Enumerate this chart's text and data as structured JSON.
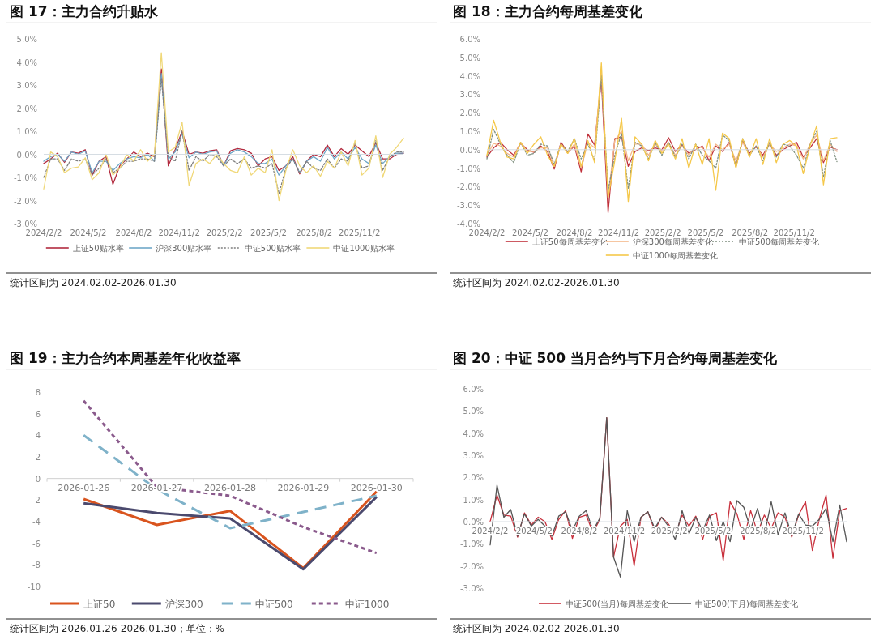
{
  "chart_data": [
    {
      "type": "line",
      "title": "图 17：主力合约升贴水",
      "annotations": [
        "统计区间为 2024.02.02-2026.01.30"
      ],
      "legend": "bottom",
      "x": [
        "2024-02-02",
        "2024-02-16",
        "2024-03-01",
        "2024-03-15",
        "2024-03-29",
        "2024-04-12",
        "2024-04-26",
        "2024-05-10",
        "2024-05-24",
        "2024-06-07",
        "2024-06-21",
        "2024-07-05",
        "2024-07-19",
        "2024-08-02",
        "2024-08-16",
        "2024-08-30",
        "2024-09-13",
        "2024-09-27",
        "2024-10-11",
        "2024-10-25",
        "2024-11-08",
        "2024-11-22",
        "2024-12-06",
        "2024-12-20",
        "2025-01-03",
        "2025-01-17",
        "2025-01-31",
        "2025-02-14",
        "2025-02-28",
        "2025-03-14",
        "2025-03-28",
        "2025-04-11",
        "2025-04-25",
        "2025-05-09",
        "2025-05-23",
        "2025-06-06",
        "2025-06-20",
        "2025-07-04",
        "2025-07-18",
        "2025-08-01",
        "2025-08-15",
        "2025-08-29",
        "2025-09-12",
        "2025-09-26",
        "2025-10-10",
        "2025-10-24",
        "2025-11-07",
        "2025-11-21",
        "2025-12-05",
        "2025-12-19",
        "2026-01-02",
        "2026-01-16",
        "2026-01-30"
      ],
      "xlim": [
        "2024-02-02",
        "2026-01-30"
      ],
      "xticks": [
        {
          "value": "2024-02-02",
          "label": "2024/2/2"
        },
        {
          "value": "2024-05-02",
          "label": "2024/5/2"
        },
        {
          "value": "2024-08-02",
          "label": "2024/8/2"
        },
        {
          "value": "2024-11-02",
          "label": "2024/11/2"
        },
        {
          "value": "2025-02-02",
          "label": "2025/2/2"
        },
        {
          "value": "2025-05-02",
          "label": "2025/5/2"
        },
        {
          "value": "2025-08-02",
          "label": "2025/8/2"
        },
        {
          "value": "2025-11-02",
          "label": "2025/11/2"
        }
      ],
      "ylim": [
        -3,
        5
      ],
      "yticks": [
        {
          "value": -3,
          "label": "-3.0%"
        },
        {
          "value": -2,
          "label": "-2.0%"
        },
        {
          "value": -1,
          "label": "-1.0%"
        },
        {
          "value": 0,
          "label": "0.0%"
        },
        {
          "value": 1,
          "label": "1.0%"
        },
        {
          "value": 2,
          "label": "2.0%"
        },
        {
          "value": 3,
          "label": "3.0%"
        },
        {
          "value": 4,
          "label": "4.0%"
        },
        {
          "value": 5,
          "label": "5.0%"
        }
      ],
      "series": [
        {
          "name": "上证50贴水率",
          "color": "#b22a3e",
          "values": [
            -0.4,
            -0.2,
            0.05,
            -0.35,
            0.1,
            0.05,
            0.2,
            -0.9,
            -0.3,
            -0.1,
            -1.3,
            -0.5,
            -0.2,
            0.1,
            -0.1,
            0.05,
            -0.1,
            3.7,
            -0.5,
            0.2,
            1.0,
            0.0,
            0.1,
            0.05,
            0.15,
            0.2,
            -0.5,
            0.15,
            0.25,
            0.2,
            0.05,
            -0.5,
            -0.2,
            -0.1,
            -0.7,
            -0.5,
            -0.1,
            -0.85,
            -0.3,
            0.0,
            -0.1,
            0.4,
            -0.1,
            0.25,
            0.0,
            0.4,
            0.15,
            -0.1,
            0.5,
            -0.2,
            -0.2,
            0.0,
            0.05
          ]
        },
        {
          "name": "沪深300贴水率",
          "color": "#6fa8c8",
          "values": [
            -0.3,
            -0.1,
            0.0,
            -0.3,
            0.1,
            0.0,
            0.15,
            -0.8,
            -0.3,
            -0.3,
            -0.7,
            -0.4,
            -0.2,
            -0.1,
            -0.15,
            0.0,
            -0.3,
            3.5,
            -0.2,
            0.1,
            0.9,
            -0.15,
            0.1,
            0.0,
            0.1,
            0.15,
            -0.5,
            0.05,
            0.2,
            0.1,
            -0.1,
            -0.4,
            -0.4,
            -0.2,
            -0.9,
            -0.5,
            -0.2,
            -0.8,
            -0.3,
            -0.1,
            -0.3,
            0.3,
            -0.2,
            0.1,
            -0.2,
            0.3,
            -0.2,
            -0.4,
            0.4,
            -0.4,
            -0.1,
            0.05,
            0.05
          ]
        },
        {
          "name": "中证500贴水率",
          "color": "#7f7f7f",
          "line_style": "dotted",
          "values": [
            -1.0,
            -0.2,
            -0.2,
            -0.7,
            -0.2,
            -0.3,
            -0.2,
            -0.9,
            -0.6,
            -0.2,
            -0.8,
            -0.6,
            -0.3,
            -0.3,
            -0.2,
            -0.2,
            -0.3,
            3.3,
            -0.1,
            -0.3,
            1.0,
            -0.7,
            -0.1,
            -0.3,
            0.0,
            -0.1,
            -0.5,
            -0.2,
            -0.4,
            -0.2,
            -0.6,
            -0.5,
            -0.6,
            -0.4,
            -1.7,
            -0.6,
            -0.2,
            -0.8,
            -0.3,
            -0.6,
            -0.7,
            -0.2,
            -0.6,
            -0.2,
            -0.3,
            0.5,
            -0.6,
            -0.5,
            0.6,
            -0.7,
            -0.1,
            0.1,
            0.1
          ]
        },
        {
          "name": "中证1000贴水率",
          "color": "#f0d878",
          "values": [
            -1.5,
            0.1,
            -0.1,
            -0.8,
            -0.6,
            -0.55,
            -0.15,
            -1.1,
            -0.8,
            0.0,
            -0.9,
            -0.6,
            0.0,
            -0.3,
            0.2,
            -0.3,
            0.0,
            4.4,
            0.1,
            0.3,
            1.4,
            -1.35,
            -0.4,
            -0.2,
            -0.4,
            0.0,
            -0.4,
            -0.7,
            -0.8,
            -0.1,
            -0.9,
            -0.6,
            -0.8,
            0.2,
            -2.0,
            -0.7,
            0.2,
            -0.5,
            -0.8,
            -0.5,
            -0.95,
            -0.3,
            -0.6,
            0.1,
            -0.5,
            0.6,
            -0.9,
            -0.6,
            0.8,
            -1.0,
            0.0,
            0.3,
            0.7
          ]
        }
      ]
    },
    {
      "type": "line",
      "title": "图 18：主力合约每周基差变化",
      "annotations": [
        "统计区间为 2024.02.02-2026.01.30"
      ],
      "legend": "bottom",
      "x": [
        "2024-02-02",
        "2024-02-16",
        "2024-03-01",
        "2024-03-15",
        "2024-03-29",
        "2024-04-12",
        "2024-04-26",
        "2024-05-10",
        "2024-05-24",
        "2024-06-07",
        "2024-06-21",
        "2024-07-05",
        "2024-07-19",
        "2024-08-02",
        "2024-08-16",
        "2024-08-30",
        "2024-09-13",
        "2024-09-27",
        "2024-10-11",
        "2024-10-25",
        "2024-11-08",
        "2024-11-22",
        "2024-12-06",
        "2024-12-20",
        "2025-01-03",
        "2025-01-17",
        "2025-01-31",
        "2025-02-14",
        "2025-02-28",
        "2025-03-14",
        "2025-03-28",
        "2025-04-11",
        "2025-04-25",
        "2025-05-09",
        "2025-05-23",
        "2025-06-06",
        "2025-06-20",
        "2025-07-04",
        "2025-07-18",
        "2025-08-01",
        "2025-08-15",
        "2025-08-29",
        "2025-09-12",
        "2025-09-26",
        "2025-10-10",
        "2025-10-24",
        "2025-11-07",
        "2025-11-21",
        "2025-12-05",
        "2025-12-19",
        "2026-01-02",
        "2026-01-16",
        "2026-01-30"
      ],
      "xlim": [
        "2024-02-02",
        "2026-01-30"
      ],
      "xticks": [
        {
          "value": "2024-02-02",
          "label": "2024/2/2"
        },
        {
          "value": "2024-05-02",
          "label": "2024/5/2"
        },
        {
          "value": "2024-08-02",
          "label": "2024/8/2"
        },
        {
          "value": "2024-11-02",
          "label": "2024/11/2"
        },
        {
          "value": "2025-02-02",
          "label": "2025/2/2"
        },
        {
          "value": "2025-05-02",
          "label": "2025/5/2"
        },
        {
          "value": "2025-08-02",
          "label": "2025/8/2"
        },
        {
          "value": "2025-11-02",
          "label": "2025/11/2"
        }
      ],
      "ylim": [
        -4,
        6
      ],
      "yticks": [
        {
          "value": -4,
          "label": "-4.0%"
        },
        {
          "value": -3,
          "label": "-3.0%"
        },
        {
          "value": -2,
          "label": "-2.0%"
        },
        {
          "value": -1,
          "label": "-1.0%"
        },
        {
          "value": 0,
          "label": "0.0%"
        },
        {
          "value": 1,
          "label": "1.0%"
        },
        {
          "value": 2,
          "label": "2.0%"
        },
        {
          "value": 3,
          "label": "3.0%"
        },
        {
          "value": 4,
          "label": "4.0%"
        },
        {
          "value": 5,
          "label": "5.0%"
        },
        {
          "value": 6,
          "label": "6.0%"
        }
      ],
      "series": [
        {
          "name": "上证50每周基差变化",
          "color": "#c0303a",
          "values": [
            -0.4,
            0.1,
            0.4,
            0.0,
            -0.3,
            0.35,
            0.0,
            -0.15,
            0.2,
            -0.1,
            -1.05,
            0.4,
            -0.15,
            0.2,
            -1.2,
            0.85,
            0.25,
            3.8,
            -3.4,
            0.6,
            0.7,
            -0.9,
            -0.1,
            0.1,
            -0.05,
            0.1,
            0.0,
            0.65,
            -0.1,
            0.25,
            -0.2,
            0.0,
            0.2,
            -0.6,
            0.2,
            -0.1,
            0.4,
            -0.9,
            0.5,
            -0.2,
            0.15,
            -0.3,
            0.3,
            -0.3,
            0.0,
            0.2,
            0.4,
            -0.4,
            0.1,
            0.6,
            -0.7,
            0.15,
            0.0
          ]
        },
        {
          "name": "沪深300每周基差变化",
          "color": "#f4b88a",
          "values": [
            -0.3,
            0.35,
            0.2,
            -0.2,
            -0.4,
            0.4,
            -0.1,
            -0.1,
            0.1,
            0.1,
            -0.9,
            0.3,
            -0.2,
            0.3,
            -1.0,
            0.4,
            0.1,
            4.2,
            -2.6,
            0.5,
            1.0,
            -0.6,
            0.3,
            0.3,
            -0.3,
            0.3,
            -0.1,
            0.4,
            -0.3,
            0.2,
            -0.3,
            0.2,
            0.1,
            -0.4,
            0.3,
            0.0,
            0.3,
            -0.6,
            0.4,
            -0.3,
            0.2,
            -0.4,
            0.3,
            -0.1,
            0.1,
            0.3,
            0.2,
            -0.5,
            0.3,
            0.8,
            -0.6,
            0.3,
            -0.1
          ]
        },
        {
          "name": "中证500每周基差变化",
          "color": "#7f8f7f",
          "line_style": "dotted",
          "values": [
            -0.5,
            1.1,
            0.3,
            -0.3,
            -0.7,
            0.4,
            -0.3,
            -0.2,
            0.3,
            0.2,
            -0.8,
            0.3,
            -0.1,
            0.6,
            -0.5,
            0.3,
            -0.6,
            4.0,
            -2.2,
            -0.3,
            0.9,
            -2.1,
            0.4,
            0.2,
            -0.5,
            0.4,
            -0.3,
            0.4,
            -0.4,
            0.3,
            -0.5,
            0.3,
            -0.3,
            -0.6,
            -1.0,
            0.8,
            0.5,
            -0.9,
            0.6,
            -0.3,
            0.2,
            -0.6,
            0.4,
            -0.4,
            0.3,
            0.2,
            -0.3,
            -1.0,
            0.3,
            1.0,
            -1.5,
            0.5,
            -0.65
          ]
        },
        {
          "name": "中证1000每周基差变化",
          "color": "#f5c84a",
          "values": [
            -0.3,
            1.6,
            0.4,
            -0.4,
            -0.5,
            0.4,
            -0.2,
            0.3,
            0.7,
            -0.3,
            -0.9,
            0.3,
            -0.2,
            0.6,
            -0.9,
            0.5,
            -0.7,
            4.7,
            -2.6,
            -0.6,
            1.7,
            -2.8,
            0.7,
            0.3,
            -0.6,
            0.5,
            -0.2,
            0.3,
            -0.5,
            0.6,
            -1.0,
            0.3,
            -0.8,
            0.6,
            -2.2,
            0.9,
            0.6,
            -1.0,
            0.6,
            -0.4,
            0.6,
            -0.8,
            0.6,
            -0.7,
            0.3,
            0.5,
            0.2,
            -1.3,
            0.2,
            1.3,
            -1.9,
            0.6,
            0.65
          ]
        }
      ]
    },
    {
      "type": "line",
      "title": "图 19：主力合约本周基差年化收益率",
      "annotations": [
        "统计区间为 2026.01.26-2026.01.30；单位：%"
      ],
      "legend": "bottom",
      "categories": [
        "2026-01-26",
        "2026-01-27",
        "2026-01-28",
        "2026-01-29",
        "2026-01-30"
      ],
      "ylim": [
        -10,
        8
      ],
      "yticks": [
        -10,
        -8,
        -6,
        -4,
        -2,
        0,
        2,
        4,
        6,
        8
      ],
      "series": [
        {
          "name": "上证50",
          "color": "#d9541e",
          "values": [
            -1.9,
            -4.3,
            -3.0,
            -8.3,
            -1.2
          ]
        },
        {
          "name": "沪深300",
          "color": "#4b4a6e",
          "values": [
            -2.3,
            -3.2,
            -3.7,
            -8.4,
            -1.7
          ]
        },
        {
          "name": "中证500",
          "color": "#7fb2c9",
          "line_style": "dashed",
          "values": [
            4.0,
            -1.0,
            -4.6,
            -3.1,
            -1.6
          ]
        },
        {
          "name": "中证1000",
          "color": "#8a5a8c",
          "line_style": "dotted",
          "values": [
            7.2,
            -0.8,
            -1.6,
            -4.5,
            -6.9
          ]
        }
      ]
    },
    {
      "type": "line",
      "title": "图 20：中证 500 当月合约与下月合约每周基差变化",
      "annotations": [
        "统计区间为 2024.02.02-2026.01.30"
      ],
      "legend": "bottom",
      "x": [
        "2024-02-02",
        "2024-02-16",
        "2024-03-01",
        "2024-03-15",
        "2024-03-29",
        "2024-04-12",
        "2024-04-26",
        "2024-05-10",
        "2024-05-24",
        "2024-06-07",
        "2024-06-21",
        "2024-07-05",
        "2024-07-19",
        "2024-08-02",
        "2024-08-16",
        "2024-08-30",
        "2024-09-13",
        "2024-09-27",
        "2024-10-11",
        "2024-10-25",
        "2024-11-08",
        "2024-11-22",
        "2024-12-06",
        "2024-12-20",
        "2025-01-03",
        "2025-01-17",
        "2025-01-31",
        "2025-02-14",
        "2025-02-28",
        "2025-03-14",
        "2025-03-28",
        "2025-04-11",
        "2025-04-25",
        "2025-05-09",
        "2025-05-23",
        "2025-06-06",
        "2025-06-20",
        "2025-07-04",
        "2025-07-18",
        "2025-08-01",
        "2025-08-15",
        "2025-08-29",
        "2025-09-12",
        "2025-09-26",
        "2025-10-10",
        "2025-10-24",
        "2025-11-07",
        "2025-11-21",
        "2025-12-05",
        "2025-12-19",
        "2026-01-02",
        "2026-01-16",
        "2026-01-30"
      ],
      "xlim": [
        "2024-02-02",
        "2026-01-30"
      ],
      "xticks": [
        {
          "value": "2024-02-02",
          "label": "2024/2/2"
        },
        {
          "value": "2024-05-02",
          "label": "2024/5/2"
        },
        {
          "value": "2024-08-02",
          "label": "2024/8/2"
        },
        {
          "value": "2024-11-02",
          "label": "2024/11/2"
        },
        {
          "value": "2025-02-02",
          "label": "2025/2/2"
        },
        {
          "value": "2025-05-02",
          "label": "2025/5/2"
        },
        {
          "value": "2025-08-02",
          "label": "2025/8/2"
        },
        {
          "value": "2025-11-02",
          "label": "2025/11/2"
        }
      ],
      "ylim": [
        -3,
        6
      ],
      "yticks": [
        {
          "value": -3,
          "label": "-3.0%"
        },
        {
          "value": -2,
          "label": "-2.0%"
        },
        {
          "value": -1,
          "label": "-1.0%"
        },
        {
          "value": 0,
          "label": "0.0%"
        },
        {
          "value": 1,
          "label": "1.0%"
        },
        {
          "value": 2,
          "label": "2.0%"
        },
        {
          "value": 3,
          "label": "3.0%"
        },
        {
          "value": 4,
          "label": "4.0%"
        },
        {
          "value": 5,
          "label": "5.0%"
        },
        {
          "value": 6,
          "label": "6.0%"
        }
      ],
      "series": [
        {
          "name": "中证500(当月)每周基差变化",
          "color": "#c8303c",
          "values": [
            0.0,
            1.2,
            0.3,
            0.25,
            -0.7,
            0.4,
            -0.15,
            0.2,
            0.0,
            -0.8,
            0.1,
            0.5,
            -0.75,
            0.2,
            0.3,
            -0.5,
            0.1,
            4.7,
            -1.6,
            -0.2,
            0.1,
            -2.0,
            0.2,
            0.45,
            -0.4,
            0.2,
            -0.1,
            -0.6,
            0.3,
            -0.2,
            0.25,
            -0.8,
            0.25,
            0.4,
            -1.75,
            0.9,
            0.35,
            -0.8,
            0.5,
            -0.5,
            0.3,
            -0.3,
            0.4,
            0.2,
            -0.7,
            0.3,
            0.9,
            -1.3,
            0.1,
            1.2,
            -1.65,
            0.5,
            0.6
          ]
        },
        {
          "name": "中证500(下月)每周基差变化",
          "color": "#555555",
          "values": [
            -1.05,
            1.65,
            0.2,
            0.55,
            -0.65,
            0.35,
            -0.2,
            0.1,
            -0.2,
            -0.65,
            0.25,
            0.45,
            -0.4,
            0.25,
            0.5,
            -0.4,
            0.15,
            4.7,
            -1.6,
            -2.5,
            0.5,
            -0.9,
            0.2,
            0.45,
            -0.3,
            0.2,
            -0.2,
            -0.8,
            0.5,
            -0.55,
            0.2,
            -0.4,
            0.3,
            -0.85,
            0.0,
            -0.9,
            0.95,
            0.65,
            -0.35,
            0.6,
            -0.6,
            0.9,
            -0.6,
            0.4,
            -0.65,
            0.35,
            -0.15,
            -0.2,
            0.1,
            0.6,
            -0.9,
            0.75,
            -0.9
          ]
        }
      ]
    }
  ]
}
